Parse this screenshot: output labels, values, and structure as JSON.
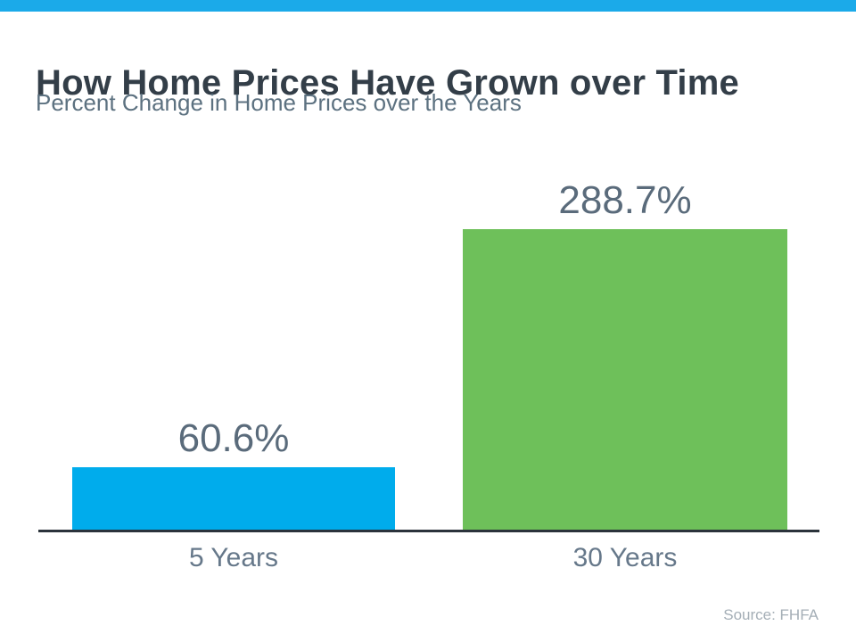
{
  "page": {
    "title": "How Home Prices Have Grown over Time",
    "subtitle": "Percent Change in Home Prices over the Years",
    "source_note": "Source: FHFA"
  },
  "chart_data": {
    "type": "bar",
    "title": "How Home Prices Have Grown over Time",
    "subtitle": "Percent Change in Home Prices over the Years",
    "categories": [
      "5 Years",
      "30 Years"
    ],
    "values": [
      60.6,
      288.7
    ],
    "value_labels": [
      "60.6%",
      "288.7%"
    ],
    "series_colors": [
      "#00ACEC",
      "#6EC05A"
    ],
    "xlabel": "",
    "ylabel": "",
    "ylim": [
      0,
      300
    ],
    "grid": false,
    "legend": false,
    "annotations": [
      "Source: FHFA"
    ]
  },
  "colors": {
    "accent_bar": "#1BAAE9",
    "bar_blue": "#00ACEC",
    "bar_green": "#6EC05A",
    "title_text": "#333E48",
    "subtitle_text": "#5C7180",
    "value_label_text": "#5A6B7B",
    "category_label_text": "#66788A",
    "axis_line": "#2B333B",
    "source_text": "#A4AEB6"
  }
}
